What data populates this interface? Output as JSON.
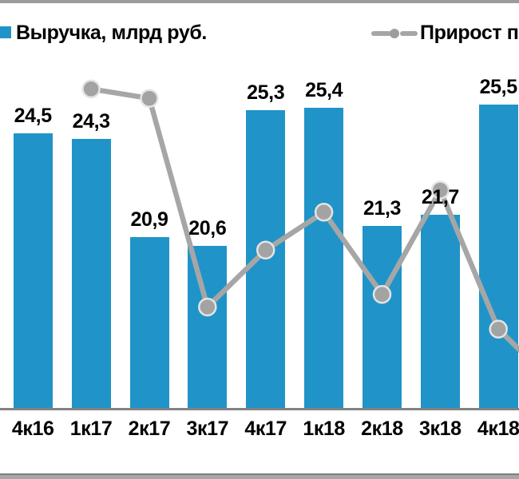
{
  "colors": {
    "bar_blue": "#2094C8",
    "line_gray": "#a6a6a6",
    "marker_fill": "#a3a3a3",
    "marker_ring": "#e4e4e4",
    "axis_gray": "#828282",
    "border_strip": "#9b9b9b"
  },
  "legend": {
    "revenue_label": "Выручка, млрд руб.",
    "growth_label": "Прирост п"
  },
  "chart_data": {
    "type": "bar",
    "subtype": "bar+line combo, line on hidden secondary axis",
    "title": "",
    "xlabel": "",
    "ylabel": "",
    "grid": false,
    "legend_position": "top",
    "value_axes_hidden": true,
    "categories": [
      "4к16",
      "1к17",
      "2к17",
      "3к17",
      "4к17",
      "1к18",
      "2к18",
      "3к18",
      "4к18"
    ],
    "series": [
      {
        "name": "Выручка, млрд руб.",
        "type": "bar",
        "color": "#2094C8",
        "values": [
          24.5,
          24.3,
          20.9,
          20.6,
          25.3,
          25.4,
          21.3,
          21.7,
          25.5
        ],
        "labels": [
          "24,5",
          "24,3",
          "20,9",
          "20,6",
          "25,3",
          "25,4",
          "21,3",
          "21,7",
          "25,5"
        ]
      },
      {
        "name": "Прирост п",
        "type": "line",
        "color": "#a6a6a6",
        "estimated": true,
        "values": [
          null,
          8.4,
          8.1,
          1.5,
          3.3,
          4.5,
          1.9,
          5.2,
          0.8
        ],
        "offscreen_next_value": -1.0
      }
    ],
    "bar_axis_range_estimate": [
      15,
      27
    ]
  }
}
